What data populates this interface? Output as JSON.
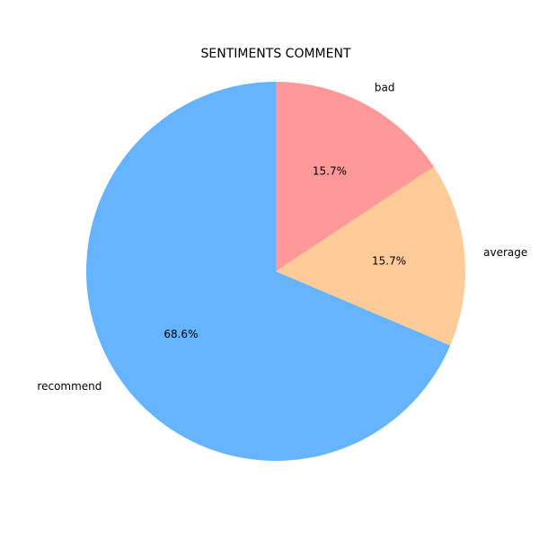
{
  "chart_data": {
    "type": "pie",
    "title": "SENTIMENTS COMMENT",
    "categories": [
      "recommend",
      "average",
      "bad"
    ],
    "values": [
      68.6,
      15.7,
      15.7
    ],
    "percent_labels": [
      "68.6%",
      "15.7%",
      "15.7%"
    ],
    "colors": [
      "#66b3ff",
      "#ffcc99",
      "#ff9999"
    ],
    "start_angle_deg": 90,
    "direction": "counterclockwise",
    "legend": "none"
  }
}
